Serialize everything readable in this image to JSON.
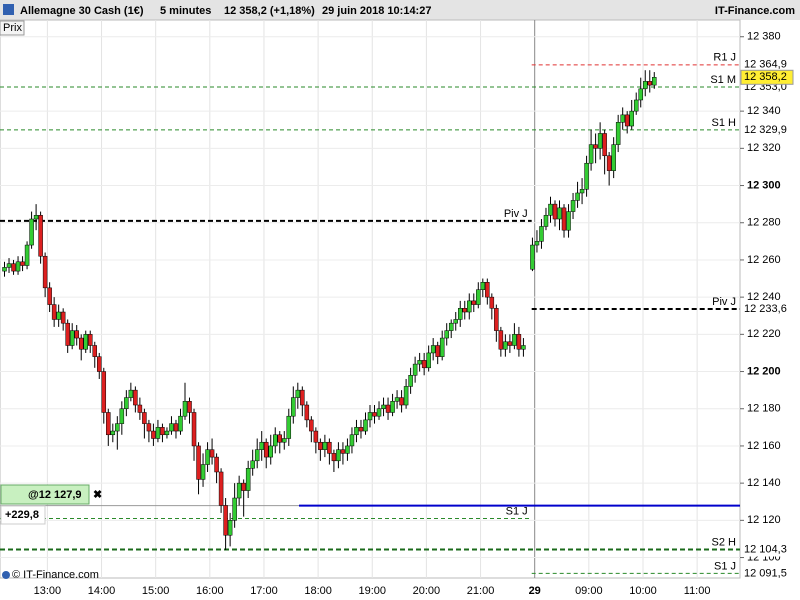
{
  "header": {
    "instrument": "Allemagne 30 Cash (1€)",
    "period": "5 minutes",
    "price": "12 358,2 (+1,18%)",
    "datetime": "29 juin 2018 10:14:27",
    "brand": "IT-Finance.com",
    "button": "Prix",
    "footer": "© IT-Finance.com"
  },
  "chart_data": {
    "type": "candlestick",
    "up_color": "#33cc33",
    "down_color": "#dd2020",
    "grid": true,
    "xlim": [
      -1,
      163
    ],
    "ylim": [
      12089,
      12389
    ],
    "xticks": [
      {
        "value": 9.5,
        "label": "13:00"
      },
      {
        "value": 21.5,
        "label": "14:00"
      },
      {
        "value": 33.5,
        "label": "15:00"
      },
      {
        "value": 45.5,
        "label": "16:00"
      },
      {
        "value": 57.5,
        "label": "17:00"
      },
      {
        "value": 69.5,
        "label": "18:00"
      },
      {
        "value": 81.5,
        "label": "19:00"
      },
      {
        "value": 93.5,
        "label": "20:00"
      },
      {
        "value": 105.5,
        "label": "21:00"
      },
      {
        "value": 117.5,
        "label": "29",
        "bold": true
      },
      {
        "value": 129.5,
        "label": "09:00"
      },
      {
        "value": 141.5,
        "label": "10:00"
      },
      {
        "value": 153.5,
        "label": "11:00"
      }
    ],
    "yticks": [
      {
        "value": 12380,
        "label": "12 380"
      },
      {
        "value": 12340,
        "label": "12 340"
      },
      {
        "value": 12320,
        "label": "12 320"
      },
      {
        "value": 12300,
        "label": "12 300",
        "bold": true
      },
      {
        "value": 12280,
        "label": "12 280"
      },
      {
        "value": 12260,
        "label": "12 260"
      },
      {
        "value": 12240,
        "label": "12 240"
      },
      {
        "value": 12220,
        "label": "12 220"
      },
      {
        "value": 12200,
        "label": "12 200",
        "bold": true
      },
      {
        "value": 12180,
        "label": "12 180"
      },
      {
        "value": 12160,
        "label": "12 160"
      },
      {
        "value": 12140,
        "label": "12 140"
      },
      {
        "value": 12120,
        "label": "12 120"
      },
      {
        "value": 12100,
        "label": "12 100"
      }
    ],
    "open": [
      12254,
      12256,
      12258,
      12254,
      12259,
      12257,
      12268,
      12282,
      12284,
      12262,
      12245,
      12236,
      12228,
      12232,
      12226,
      12214,
      12222,
      12218,
      12212,
      12220,
      12214,
      12208,
      12200,
      12178,
      12166,
      12168,
      12172,
      12180,
      12186,
      12190,
      12182,
      12178,
      12172,
      12168,
      12164,
      12170,
      12166,
      12168,
      12172,
      12168,
      12176,
      12184,
      12178,
      12160,
      12142,
      12150,
      12158,
      12154,
      12146,
      12128,
      12112,
      12120,
      12132,
      12140,
      12136,
      12148,
      12152,
      12158,
      12162,
      12154,
      12160,
      12166,
      12162,
      12164,
      12176,
      12186,
      12190,
      12182,
      12174,
      12168,
      12162,
      12158,
      12162,
      12156,
      12152,
      12158,
      12156,
      12160,
      12166,
      12170,
      12168,
      12174,
      12178,
      12176,
      12180,
      12182,
      12178,
      12184,
      12186,
      12182,
      12192,
      12198,
      12204,
      12206,
      12202,
      12210,
      12214,
      12208,
      12218,
      12222,
      12226,
      12228,
      12234,
      12232,
      12238,
      12236,
      12244,
      12248,
      12240,
      12234,
      12222,
      12212,
      12216,
      12214,
      12220,
      12212,
      null,
      12255,
      12268,
      12270,
      12278,
      12284,
      12290,
      12282,
      12288,
      12276,
      12286,
      12292,
      12296,
      12298,
      12312,
      12322,
      12320,
      12328,
      12316,
      12308,
      12322,
      12334,
      12338,
      12332,
      12340,
      12346,
      12352,
      12356,
      12354
    ],
    "high": [
      12259,
      12261,
      12260,
      12262,
      12262,
      12270,
      12286,
      12290,
      12286,
      12264,
      12248,
      12240,
      12236,
      12234,
      12228,
      12226,
      12225,
      12220,
      12222,
      12222,
      12216,
      12210,
      12202,
      12180,
      12172,
      12176,
      12184,
      12190,
      12194,
      12192,
      12186,
      12180,
      12174,
      12172,
      12174,
      12172,
      12170,
      12176,
      12174,
      12180,
      12194,
      12186,
      12180,
      12162,
      12156,
      12162,
      12164,
      12156,
      12148,
      12132,
      12124,
      12140,
      12144,
      12142,
      12152,
      12158,
      12164,
      12168,
      12164,
      12166,
      12170,
      12168,
      12168,
      12180,
      12192,
      12194,
      12192,
      12184,
      12176,
      12170,
      12164,
      12166,
      12164,
      12158,
      12162,
      12162,
      12164,
      12170,
      12174,
      12174,
      12178,
      12182,
      12182,
      12184,
      12186,
      12186,
      12188,
      12190,
      12190,
      12196,
      12202,
      12208,
      12210,
      12210,
      12214,
      12218,
      12216,
      12222,
      12226,
      12228,
      12232,
      12238,
      12238,
      12242,
      12242,
      12248,
      12250,
      12250,
      12242,
      12236,
      12224,
      12220,
      12220,
      12226,
      12224,
      12218,
      null,
      12272,
      12276,
      12282,
      12288,
      12294,
      12292,
      12292,
      12290,
      12290,
      12296,
      12302,
      12304,
      12316,
      12330,
      12328,
      12334,
      12330,
      12318,
      12326,
      12338,
      12342,
      12340,
      12346,
      12350,
      12358,
      12362,
      12362,
      12361
    ],
    "low": [
      12251,
      12253,
      12252,
      12252,
      12254,
      12255,
      12266,
      12276,
      12258,
      12240,
      12232,
      12224,
      12224,
      12222,
      12210,
      12212,
      12214,
      12206,
      12210,
      12210,
      12202,
      12196,
      12172,
      12160,
      12162,
      12158,
      12166,
      12176,
      12184,
      12178,
      12174,
      12164,
      12162,
      12160,
      12162,
      12162,
      12164,
      12166,
      12164,
      12166,
      12174,
      12172,
      12152,
      12134,
      12138,
      12146,
      12150,
      12140,
      12124,
      12104,
      12106,
      12116,
      12128,
      12122,
      12132,
      12144,
      12148,
      12152,
      12148,
      12150,
      12156,
      12156,
      12158,
      12160,
      12172,
      12180,
      12176,
      12170,
      12162,
      12156,
      12152,
      12154,
      12150,
      12146,
      12148,
      12150,
      12152,
      12156,
      12162,
      12164,
      12166,
      12170,
      12172,
      12174,
      12176,
      12174,
      12176,
      12180,
      12178,
      12180,
      12188,
      12194,
      12200,
      12198,
      12200,
      12206,
      12204,
      12206,
      12214,
      12218,
      12222,
      12224,
      12228,
      12228,
      12232,
      12234,
      12240,
      12236,
      12228,
      12216,
      12208,
      12208,
      12210,
      12212,
      12208,
      12208,
      null,
      12254,
      12264,
      12266,
      12276,
      12280,
      12278,
      12276,
      12272,
      12272,
      12282,
      12288,
      12290,
      12294,
      12308,
      12312,
      12314,
      12306,
      12300,
      12304,
      12318,
      12330,
      12328,
      12330,
      12338,
      12342,
      12348,
      12350,
      12352
    ],
    "close": [
      12256,
      12258,
      12254,
      12259,
      12257,
      12268,
      12282,
      12284,
      12262,
      12245,
      12236,
      12228,
      12232,
      12226,
      12214,
      12222,
      12218,
      12212,
      12220,
      12214,
      12208,
      12200,
      12178,
      12166,
      12168,
      12172,
      12180,
      12186,
      12190,
      12182,
      12178,
      12172,
      12168,
      12164,
      12170,
      12166,
      12168,
      12172,
      12168,
      12176,
      12184,
      12178,
      12160,
      12142,
      12150,
      12158,
      12154,
      12146,
      12128,
      12112,
      12120,
      12132,
      12140,
      12136,
      12148,
      12152,
      12158,
      12162,
      12154,
      12160,
      12166,
      12162,
      12164,
      12176,
      12186,
      12190,
      12182,
      12174,
      12168,
      12162,
      12158,
      12162,
      12156,
      12152,
      12158,
      12156,
      12160,
      12166,
      12170,
      12168,
      12174,
      12178,
      12176,
      12180,
      12182,
      12178,
      12184,
      12186,
      12182,
      12192,
      12198,
      12204,
      12206,
      12202,
      12210,
      12214,
      12208,
      12218,
      12222,
      12226,
      12228,
      12234,
      12232,
      12238,
      12236,
      12244,
      12248,
      12240,
      12234,
      12222,
      12212,
      12216,
      12214,
      12220,
      12212,
      12214,
      null,
      12268,
      12270,
      12278,
      12284,
      12290,
      12282,
      12288,
      12276,
      12286,
      12292,
      12296,
      12298,
      12312,
      12322,
      12320,
      12328,
      12316,
      12308,
      12322,
      12334,
      12338,
      12332,
      12340,
      12346,
      12352,
      12356,
      12354,
      12358.2
    ],
    "last_price": {
      "value": 12358.2,
      "label": "12 358,2",
      "color": "#ffee33"
    },
    "levels": [
      {
        "name": "R1 J",
        "value": 12364.9,
        "value_label": "12 364,9",
        "color": "#e03030",
        "extent": "today"
      },
      {
        "name": "S1 M",
        "value": 12353.0,
        "value_label": "12 353,0",
        "color": "#2a8a2a",
        "extent": "both"
      },
      {
        "name": "S1 H",
        "value": 12329.9,
        "value_label": "12 329,9",
        "color": "#2a8a2a",
        "extent": "both"
      },
      {
        "name": "Piv J",
        "value": 12281,
        "color": "#000000",
        "extent": "yesterday",
        "bold": true
      },
      {
        "name": "Piv J",
        "value": 12233.6,
        "value_label": "12 233,6",
        "color": "#000000",
        "extent": "today",
        "bold": true
      },
      {
        "name": "S1 J",
        "value": 12121,
        "color": "#2a8a2a",
        "extent": "yesterday"
      },
      {
        "name": "S2 H",
        "value": 12104.3,
        "value_label": "12 104,3",
        "color": "#1a6a1a",
        "extent": "both",
        "bold": true
      },
      {
        "name": "S1 J",
        "value": 12091.5,
        "value_label": "12 091,5",
        "color": "#2a8a2a",
        "extent": "today"
      }
    ],
    "alert": {
      "value": 12127.9,
      "label": "@12 127,9",
      "change": "+229,8",
      "color": "#0000cc"
    }
  }
}
